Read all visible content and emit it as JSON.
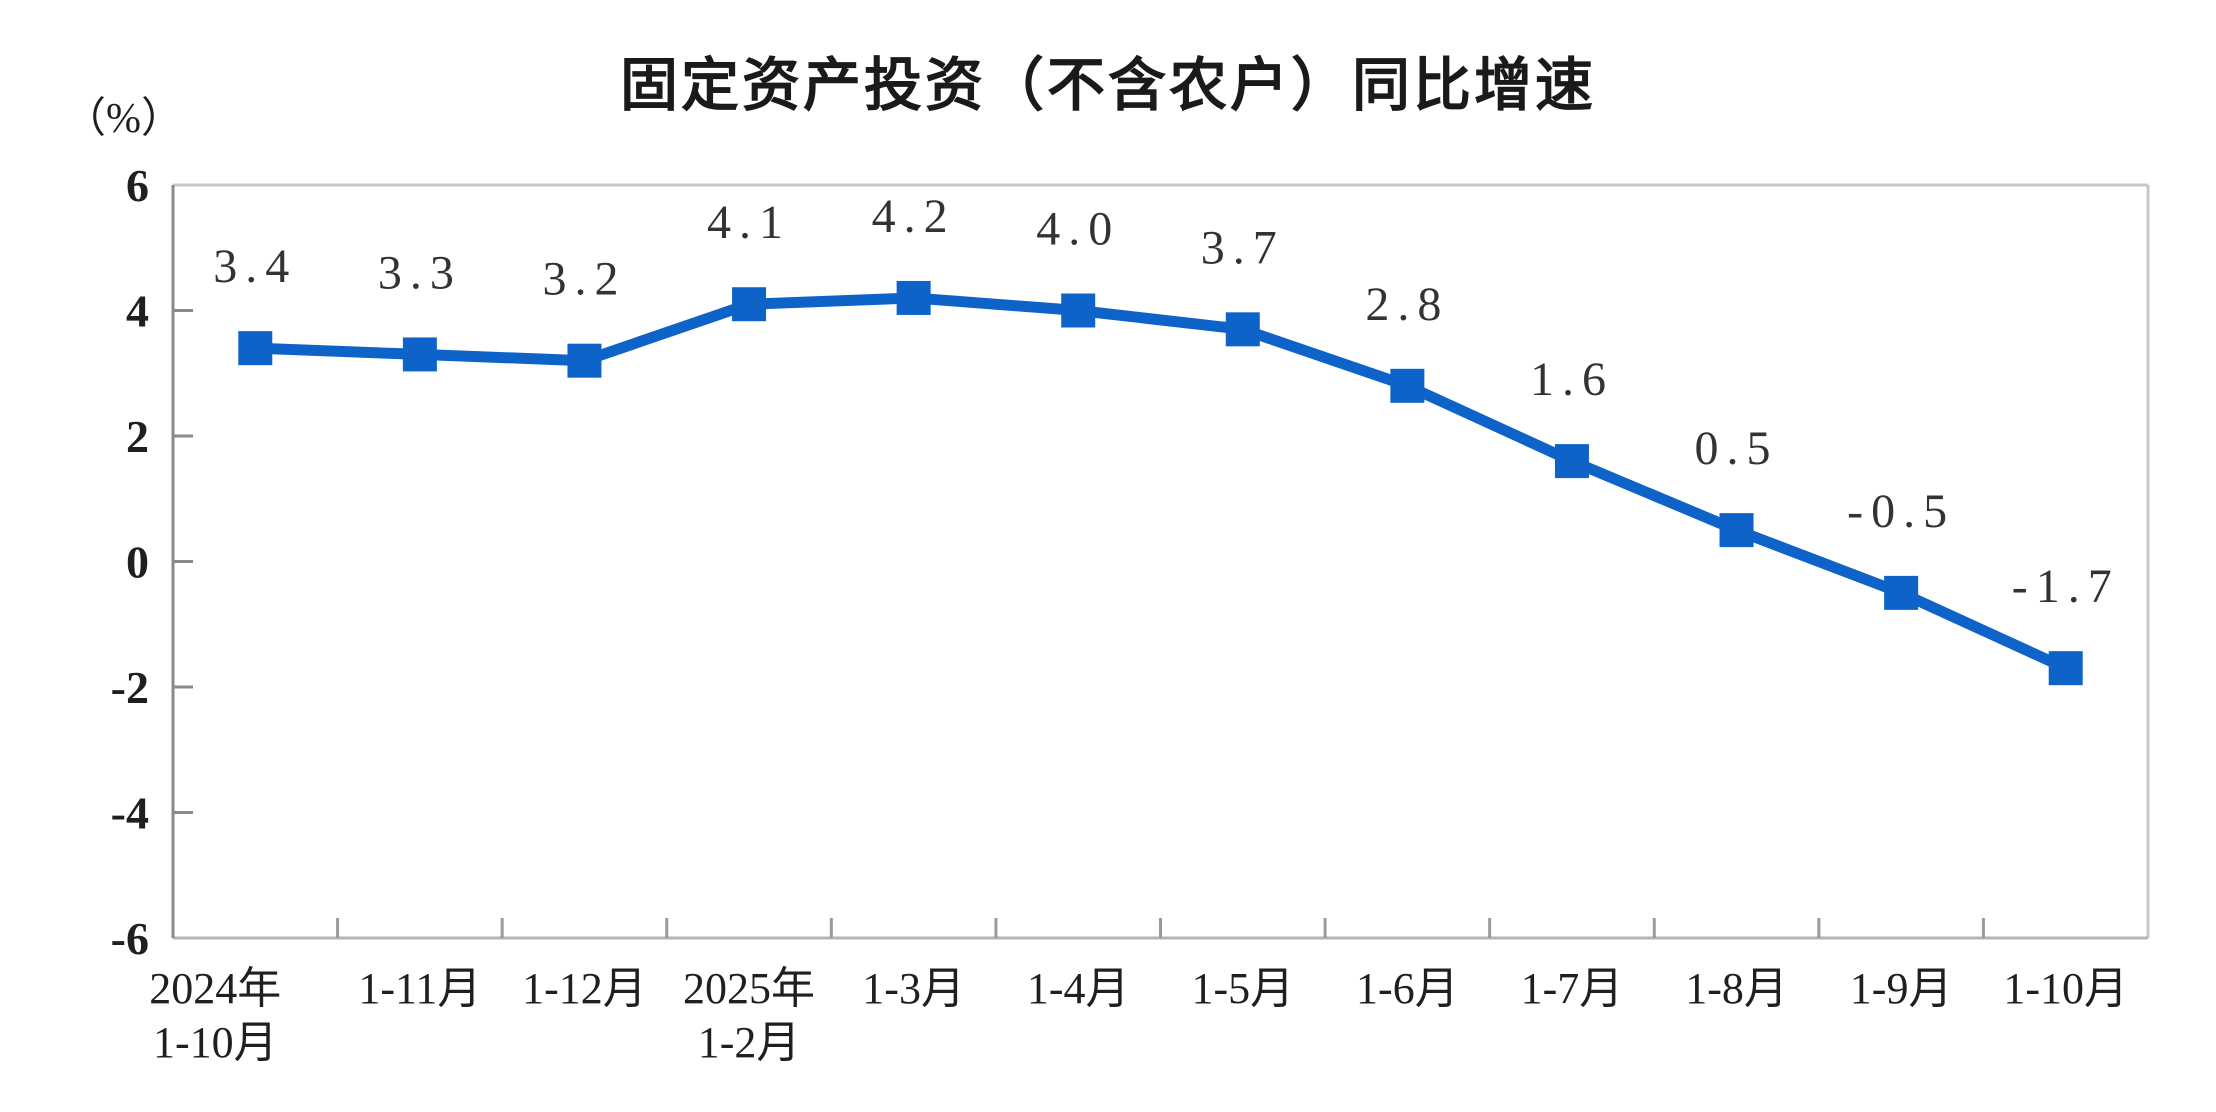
{
  "title": "固定资产投资（不含农户）同比增速",
  "unit_label": "（%）",
  "chart_data": {
    "type": "line",
    "title": "固定资产投资（不含农户）同比增速",
    "unit_label": "（%）",
    "categories": [
      "2024年\n1-10月",
      "1-11月",
      "1-12月",
      "2025年\n1-2月",
      "1-3月",
      "1-4月",
      "1-5月",
      "1-6月",
      "1-7月",
      "1-8月",
      "1-9月",
      "1-10月"
    ],
    "values": [
      3.4,
      3.3,
      3.2,
      4.1,
      4.2,
      4.0,
      3.7,
      2.8,
      1.6,
      0.5,
      -0.5,
      -1.7
    ],
    "xlabel": "",
    "ylabel": "（%）",
    "ylim": [
      -6,
      6
    ],
    "y_ticks": [
      6,
      4,
      2,
      0,
      -2,
      -4,
      -6
    ],
    "grid": false,
    "legend_position": "none",
    "marker": "square",
    "colors": {
      "line": "#0e63c8",
      "marker": "#0e63c8",
      "data_label": "#333333",
      "axis_left": "#8a8a8a",
      "axis_bottom": "#b4b4b4",
      "border_top_right": "#c8c8c8",
      "tick": "#9a9a9a",
      "text": "#1f1f1f",
      "title_text": "#1a1a1a"
    }
  }
}
